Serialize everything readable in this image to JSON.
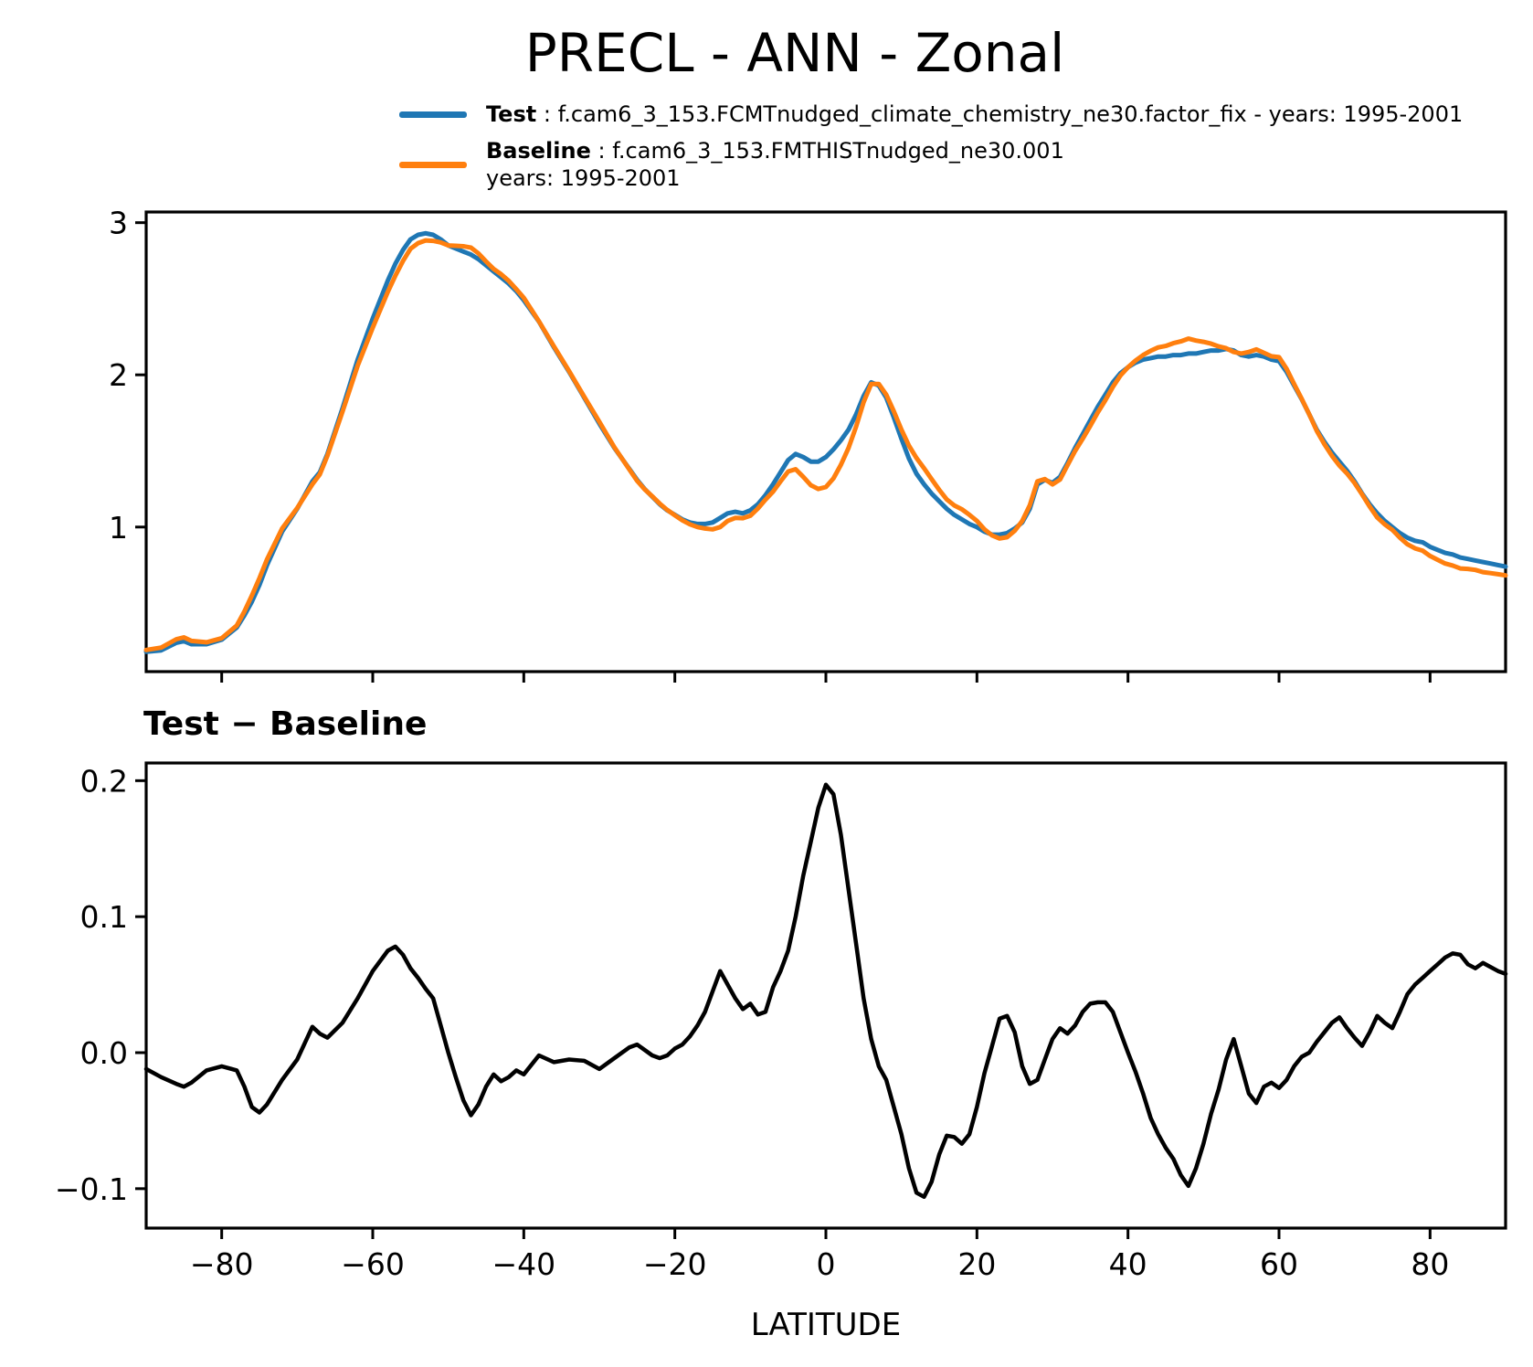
{
  "title": "PRECL - ANN - Zonal",
  "subtitle": "Test − Baseline",
  "xlabel": "LATITUDE",
  "styles": {
    "test_color": "#1f77b4",
    "baseline_color": "#ff7f0e",
    "diff_color": "#000000",
    "axis_color": "#000000",
    "background": "#ffffff"
  },
  "legend": {
    "entries": [
      {
        "name": "test",
        "color": "#1f77b4",
        "label_bold": "Test",
        "label_sep": " : ",
        "label_text": "f.cam6_3_153.FCMTnudged_climate_chemistry_ne30.factor_fix - years: 1995-2001",
        "label_line2": ""
      },
      {
        "name": "baseline",
        "color": "#ff7f0e",
        "label_bold": "Baseline",
        "label_sep": " : ",
        "label_text": "f.cam6_3_153.FMTHISTnudged_ne30.001",
        "label_line2": "years: 1995-2001"
      }
    ]
  },
  "chart_data": [
    {
      "type": "line",
      "title": "PRECL - ANN - Zonal",
      "xlabel": "",
      "ylabel": "",
      "grid": false,
      "legend_position": "above-top-center",
      "xlim": [
        -90,
        90
      ],
      "ylim": [
        0.05,
        3.07
      ],
      "xticks": [
        -80,
        -60,
        -40,
        -20,
        0,
        20,
        40,
        60,
        80
      ],
      "xticklabels": [],
      "yticks": [
        1,
        2,
        3
      ],
      "yticklabels": [
        "1",
        "2",
        "3"
      ],
      "x": [
        -90,
        -88,
        -86,
        -85,
        -84,
        -82,
        -80,
        -78,
        -77,
        -76,
        -75,
        -74,
        -72,
        -70,
        -68,
        -67,
        -66,
        -64,
        -62,
        -60,
        -58,
        -57,
        -56,
        -55,
        -54,
        -53,
        -52,
        -51,
        -50,
        -49,
        -48,
        -47,
        -46,
        -45,
        -44,
        -43,
        -42,
        -41,
        -40,
        -38,
        -36,
        -34,
        -32,
        -30,
        -28,
        -26,
        -25,
        -24,
        -23,
        -22,
        -21,
        -20,
        -19,
        -18,
        -17,
        -16,
        -15,
        -14,
        -13,
        -12,
        -11,
        -10,
        -9,
        -8,
        -7,
        -6,
        -5,
        -4,
        -3,
        -2,
        -1,
        0,
        1,
        2,
        3,
        4,
        5,
        6,
        7,
        8,
        9,
        10,
        11,
        12,
        13,
        14,
        15,
        16,
        17,
        18,
        19,
        20,
        21,
        22,
        23,
        24,
        25,
        26,
        27,
        28,
        29,
        30,
        31,
        32,
        33,
        34,
        35,
        36,
        37,
        38,
        39,
        40,
        41,
        42,
        43,
        44,
        45,
        46,
        47,
        48,
        49,
        50,
        51,
        52,
        53,
        54,
        55,
        56,
        57,
        58,
        59,
        60,
        61,
        62,
        63,
        64,
        65,
        66,
        67,
        68,
        69,
        70,
        71,
        72,
        73,
        74,
        75,
        76,
        77,
        78,
        79,
        80,
        81,
        82,
        83,
        84,
        85,
        86,
        87,
        88,
        89,
        90
      ],
      "series": [
        {
          "name": "Test",
          "color": "#1f77b4",
          "values": [
            0.18,
            0.19,
            0.24,
            0.25,
            0.23,
            0.23,
            0.26,
            0.34,
            0.42,
            0.51,
            0.62,
            0.75,
            0.97,
            1.12,
            1.3,
            1.36,
            1.48,
            1.78,
            2.1,
            2.37,
            2.62,
            2.73,
            2.82,
            2.89,
            2.92,
            2.93,
            2.92,
            2.89,
            2.85,
            2.83,
            2.81,
            2.79,
            2.76,
            2.72,
            2.68,
            2.64,
            2.6,
            2.55,
            2.49,
            2.35,
            2.18,
            2.02,
            1.85,
            1.68,
            1.52,
            1.38,
            1.31,
            1.25,
            1.2,
            1.15,
            1.11,
            1.08,
            1.05,
            1.03,
            1.02,
            1.02,
            1.03,
            1.06,
            1.09,
            1.1,
            1.09,
            1.11,
            1.15,
            1.21,
            1.28,
            1.36,
            1.44,
            1.48,
            1.46,
            1.43,
            1.43,
            1.46,
            1.51,
            1.57,
            1.64,
            1.74,
            1.86,
            1.95,
            1.93,
            1.85,
            1.72,
            1.58,
            1.45,
            1.35,
            1.28,
            1.22,
            1.17,
            1.12,
            1.08,
            1.05,
            1.02,
            1.0,
            0.97,
            0.95,
            0.95,
            0.96,
            0.99,
            1.03,
            1.12,
            1.28,
            1.31,
            1.29,
            1.33,
            1.42,
            1.52,
            1.61,
            1.7,
            1.79,
            1.87,
            1.95,
            2.01,
            2.05,
            2.08,
            2.1,
            2.11,
            2.12,
            2.12,
            2.13,
            2.13,
            2.14,
            2.14,
            2.15,
            2.16,
            2.16,
            2.17,
            2.16,
            2.13,
            2.12,
            2.13,
            2.12,
            2.1,
            2.09,
            2.02,
            1.93,
            1.84,
            1.74,
            1.64,
            1.56,
            1.49,
            1.43,
            1.37,
            1.3,
            1.22,
            1.15,
            1.09,
            1.04,
            1.0,
            0.96,
            0.93,
            0.91,
            0.9,
            0.87,
            0.85,
            0.83,
            0.82,
            0.8,
            0.79,
            0.78,
            0.77,
            0.76,
            0.75,
            0.74
          ]
        },
        {
          "name": "Baseline",
          "color": "#ff7f0e",
          "values": [
            0.192,
            0.208,
            0.263,
            0.275,
            0.252,
            0.243,
            0.27,
            0.353,
            0.445,
            0.55,
            0.664,
            0.788,
            0.99,
            1.125,
            1.281,
            1.346,
            1.469,
            1.758,
            2.06,
            2.31,
            2.545,
            2.652,
            2.748,
            2.828,
            2.865,
            2.883,
            2.88,
            2.87,
            2.85,
            2.848,
            2.845,
            2.836,
            2.798,
            2.745,
            2.696,
            2.661,
            2.618,
            2.563,
            2.506,
            2.352,
            2.187,
            2.025,
            1.856,
            1.692,
            1.524,
            1.376,
            1.304,
            1.248,
            1.202,
            1.154,
            1.112,
            1.077,
            1.044,
            1.018,
            1.0,
            0.99,
            0.985,
            1.0,
            1.04,
            1.06,
            1.058,
            1.074,
            1.122,
            1.18,
            1.232,
            1.3,
            1.365,
            1.38,
            1.33,
            1.275,
            1.25,
            1.263,
            1.32,
            1.41,
            1.52,
            1.66,
            1.82,
            1.94,
            1.94,
            1.87,
            1.76,
            1.64,
            1.535,
            1.453,
            1.386,
            1.315,
            1.245,
            1.181,
            1.142,
            1.117,
            1.08,
            1.04,
            0.985,
            0.945,
            0.925,
            0.933,
            0.975,
            1.04,
            1.143,
            1.3,
            1.315,
            1.28,
            1.312,
            1.406,
            1.5,
            1.58,
            1.664,
            1.753,
            1.833,
            1.92,
            1.995,
            2.05,
            2.094,
            2.13,
            2.158,
            2.18,
            2.19,
            2.208,
            2.22,
            2.238,
            2.225,
            2.217,
            2.205,
            2.187,
            2.175,
            2.15,
            2.14,
            2.15,
            2.167,
            2.145,
            2.122,
            2.116,
            2.04,
            1.94,
            1.843,
            1.74,
            1.632,
            1.545,
            1.468,
            1.404,
            1.352,
            1.289,
            1.215,
            1.135,
            1.063,
            1.018,
            0.982,
            0.93,
            0.887,
            0.86,
            0.845,
            0.81,
            0.785,
            0.76,
            0.747,
            0.728,
            0.725,
            0.718,
            0.704,
            0.697,
            0.69,
            0.682
          ]
        }
      ]
    },
    {
      "type": "line",
      "title": "Test − Baseline",
      "xlabel": "LATITUDE",
      "ylabel": "",
      "grid": false,
      "xlim": [
        -90,
        90
      ],
      "ylim": [
        -0.129,
        0.213
      ],
      "xticks": [
        -80,
        -60,
        -40,
        -20,
        0,
        20,
        40,
        60,
        80
      ],
      "xticklabels": [
        "−80",
        "−60",
        "−40",
        "−20",
        "0",
        "20",
        "40",
        "60",
        "80"
      ],
      "yticks": [
        -0.1,
        0.0,
        0.1,
        0.2
      ],
      "yticklabels": [
        "−0.1",
        "0.0",
        "0.1",
        "0.2"
      ],
      "x": [
        -90,
        -88,
        -86,
        -85,
        -84,
        -82,
        -80,
        -78,
        -77,
        -76,
        -75,
        -74,
        -72,
        -70,
        -68,
        -67,
        -66,
        -64,
        -62,
        -60,
        -58,
        -57,
        -56,
        -55,
        -54,
        -53,
        -52,
        -51,
        -50,
        -49,
        -48,
        -47,
        -46,
        -45,
        -44,
        -43,
        -42,
        -41,
        -40,
        -38,
        -36,
        -34,
        -32,
        -30,
        -28,
        -26,
        -25,
        -24,
        -23,
        -22,
        -21,
        -20,
        -19,
        -18,
        -17,
        -16,
        -15,
        -14,
        -13,
        -12,
        -11,
        -10,
        -9,
        -8,
        -7,
        -6,
        -5,
        -4,
        -3,
        -2,
        -1,
        0,
        1,
        2,
        3,
        4,
        5,
        6,
        7,
        8,
        9,
        10,
        11,
        12,
        13,
        14,
        15,
        16,
        17,
        18,
        19,
        20,
        21,
        22,
        23,
        24,
        25,
        26,
        27,
        28,
        29,
        30,
        31,
        32,
        33,
        34,
        35,
        36,
        37,
        38,
        39,
        40,
        41,
        42,
        43,
        44,
        45,
        46,
        47,
        48,
        49,
        50,
        51,
        52,
        53,
        54,
        55,
        56,
        57,
        58,
        59,
        60,
        61,
        62,
        63,
        64,
        65,
        66,
        67,
        68,
        69,
        70,
        71,
        72,
        73,
        74,
        75,
        76,
        77,
        78,
        79,
        80,
        81,
        82,
        83,
        84,
        85,
        86,
        87,
        88,
        89,
        90
      ],
      "series": [
        {
          "name": "Test − Baseline",
          "color": "#000000",
          "values": [
            -0.012,
            -0.018,
            -0.023,
            -0.025,
            -0.022,
            -0.013,
            -0.01,
            -0.013,
            -0.025,
            -0.04,
            -0.044,
            -0.038,
            -0.02,
            -0.005,
            0.019,
            0.014,
            0.011,
            0.022,
            0.04,
            0.06,
            0.075,
            0.078,
            0.072,
            0.062,
            0.055,
            0.047,
            0.04,
            0.02,
            0.0,
            -0.018,
            -0.035,
            -0.046,
            -0.038,
            -0.025,
            -0.016,
            -0.021,
            -0.018,
            -0.013,
            -0.016,
            -0.002,
            -0.007,
            -0.005,
            -0.006,
            -0.012,
            -0.004,
            0.004,
            0.006,
            0.002,
            -0.002,
            -0.004,
            -0.002,
            0.003,
            0.006,
            0.012,
            0.02,
            0.03,
            0.045,
            0.06,
            0.05,
            0.04,
            0.032,
            0.036,
            0.028,
            0.03,
            0.048,
            0.06,
            0.075,
            0.1,
            0.13,
            0.155,
            0.18,
            0.197,
            0.19,
            0.16,
            0.12,
            0.08,
            0.04,
            0.01,
            -0.01,
            -0.02,
            -0.04,
            -0.06,
            -0.085,
            -0.103,
            -0.106,
            -0.095,
            -0.075,
            -0.061,
            -0.062,
            -0.067,
            -0.06,
            -0.04,
            -0.015,
            0.005,
            0.025,
            0.027,
            0.015,
            -0.01,
            -0.023,
            -0.02,
            -0.005,
            0.01,
            0.018,
            0.014,
            0.02,
            0.03,
            0.036,
            0.037,
            0.037,
            0.03,
            0.015,
            0.0,
            -0.014,
            -0.03,
            -0.048,
            -0.06,
            -0.07,
            -0.078,
            -0.09,
            -0.098,
            -0.085,
            -0.067,
            -0.045,
            -0.027,
            -0.005,
            0.01,
            -0.01,
            -0.03,
            -0.037,
            -0.025,
            -0.022,
            -0.026,
            -0.02,
            -0.01,
            -0.003,
            0.0,
            0.008,
            0.015,
            0.022,
            0.026,
            0.018,
            0.011,
            0.005,
            0.015,
            0.027,
            0.022,
            0.018,
            0.03,
            0.043,
            0.05,
            0.055,
            0.06,
            0.065,
            0.07,
            0.073,
            0.072,
            0.065,
            0.062,
            0.066,
            0.063,
            0.06,
            0.058
          ]
        }
      ]
    }
  ]
}
